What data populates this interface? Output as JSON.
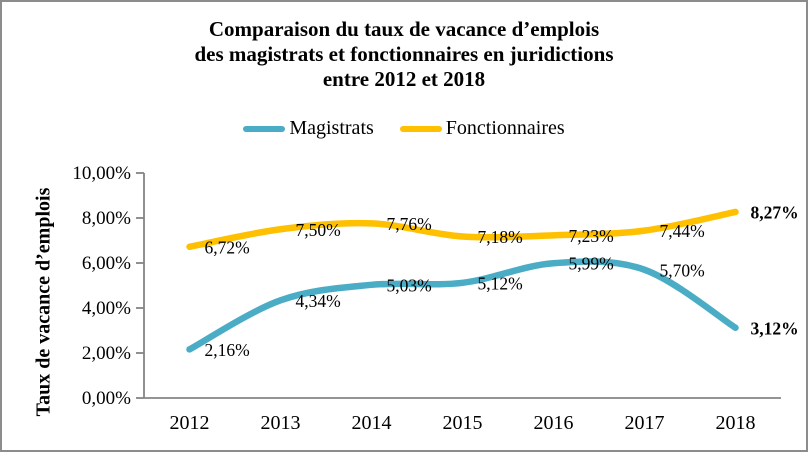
{
  "title": {
    "lines": [
      "Comparaison du taux de vacance d’emplois",
      "des magistrats et fonctionnaires en juridictions",
      "entre 2012 et 2018"
    ]
  },
  "legend": [
    {
      "label": "Magistrats",
      "color": "#4BACC6"
    },
    {
      "label": "Fonctionnaires",
      "color": "#FFC000"
    }
  ],
  "axis": {
    "y_tick_labels": [
      "0,00%",
      "2,00%",
      "4,00%",
      "6,00%",
      "8,00%",
      "10,00%"
    ],
    "axis_color": "#848484"
  },
  "chart_data": {
    "type": "line",
    "title": "Comparaison du taux de vacance d’emplois des magistrats et fonctionnaires en juridictions entre 2012 et 2018",
    "categories": [
      "2012",
      "2013",
      "2014",
      "2015",
      "2016",
      "2017",
      "2018"
    ],
    "series": [
      {
        "name": "Magistrats",
        "color": "#4BACC6",
        "values": [
          2.16,
          4.34,
          5.03,
          5.12,
          5.99,
          5.7,
          3.12
        ],
        "labels": [
          "2,16%",
          "4,34%",
          "5,03%",
          "5,12%",
          "5,99%",
          "5,70%",
          "3,12%"
        ]
      },
      {
        "name": "Fonctionnaires",
        "color": "#FFC000",
        "values": [
          6.72,
          7.5,
          7.76,
          7.18,
          7.23,
          7.44,
          8.27
        ],
        "labels": [
          "6,72%",
          "7,50%",
          "7,76%",
          "7,18%",
          "7,23%",
          "7,44%",
          "8,27%"
        ]
      }
    ],
    "xlabel": "",
    "ylabel": "Taux de vacance d’emplois",
    "ylim": [
      0,
      10
    ],
    "y_tick_step": 2,
    "grid": false,
    "legend_position": "top",
    "smooth_lines": true,
    "last_label_bold": true
  }
}
